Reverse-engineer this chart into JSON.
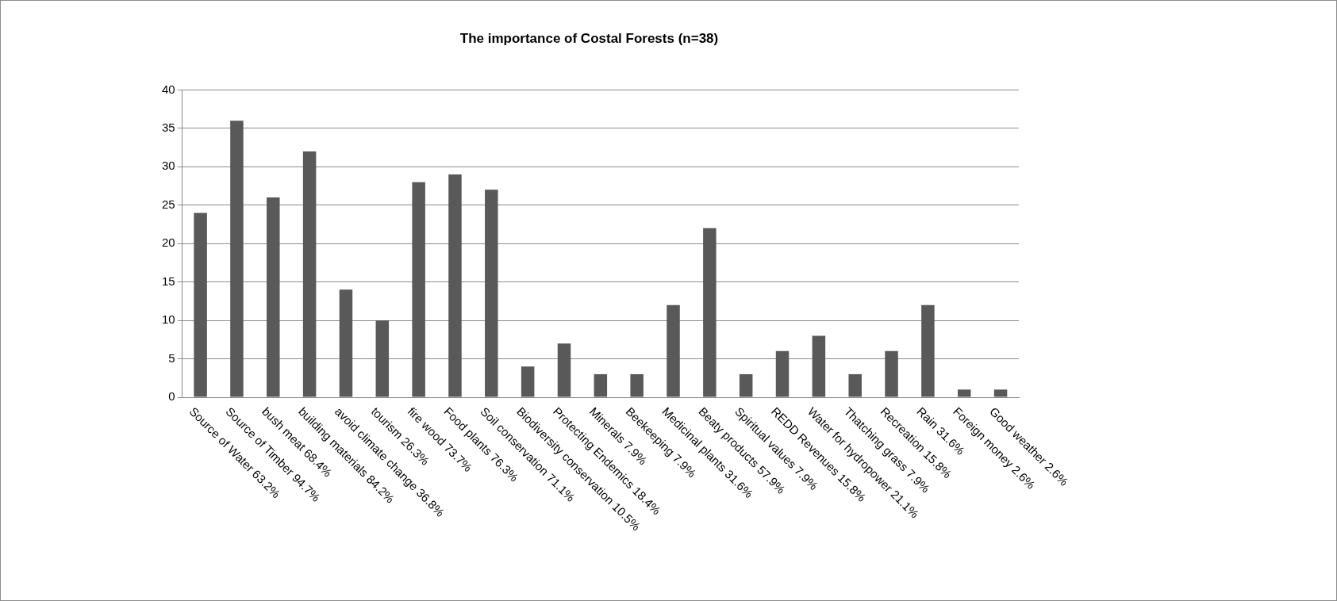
{
  "chart_data": {
    "type": "bar",
    "title": "The importance of Costal Forests (n=38)",
    "categories": [
      "Source of Water 63.2%",
      "Source of Timber 94.7%",
      "bush meat 68.4%",
      "building materials 84.2%",
      "avoid climate change 36.8%",
      "tourism 26.3%",
      "fire wood 73.7%",
      "Food plants 76.3%",
      "Soil conservation 71.1%",
      "Biodiversity conservation 10.5%",
      "Protecting Endemics 18.4%",
      "Minerals 7.9%",
      "Beekeeping 7.9%",
      "Medicinal plants 31.6%",
      "Beaty products 57.9%",
      "Spiritual values 7.9%",
      "REDD Revenues 15.8%",
      "Water for hydropower 21.1%",
      "Thatching grass 7.9%",
      "Recreation 15.8%",
      "Rain 31.6%",
      "Foreign money 2.6%",
      "Good weather 2.6%"
    ],
    "values": [
      24,
      36,
      26,
      32,
      14,
      10,
      28,
      29,
      27,
      4,
      7,
      3,
      3,
      12,
      22,
      3,
      6,
      8,
      3,
      6,
      12,
      1,
      1
    ],
    "color": "#595959",
    "ylim": [
      0,
      40
    ],
    "yticks": [
      0,
      5,
      10,
      15,
      20,
      25,
      30,
      35,
      40
    ],
    "grid": "y",
    "legend": false
  }
}
